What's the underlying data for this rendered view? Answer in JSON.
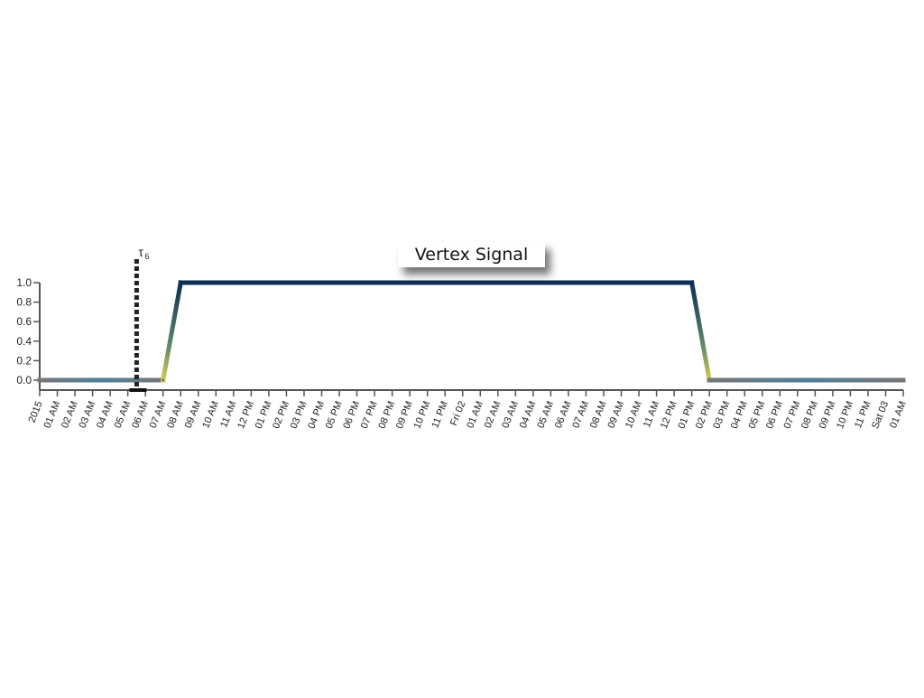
{
  "chart_data": {
    "type": "line",
    "title": "Vertex Signal",
    "xlabel": "",
    "ylabel": "",
    "x_unit": "hour",
    "x_ticks": [
      "2015",
      "01 AM",
      "02 AM",
      "03 AM",
      "04 AM",
      "05 AM",
      "06 AM",
      "07 AM",
      "08 AM",
      "09 AM",
      "10 AM",
      "11 AM",
      "12 PM",
      "01 PM",
      "02 PM",
      "03 PM",
      "04 PM",
      "05 PM",
      "06 PM",
      "07 PM",
      "08 PM",
      "09 PM",
      "10 PM",
      "11 PM",
      "Fri 02",
      "01 AM",
      "02 AM",
      "03 AM",
      "04 AM",
      "05 AM",
      "06 AM",
      "07 AM",
      "08 AM",
      "09 AM",
      "10 AM",
      "11 AM",
      "12 PM",
      "01 PM",
      "02 PM",
      "03 PM",
      "04 PM",
      "05 PM",
      "06 PM",
      "07 PM",
      "08 PM",
      "09 PM",
      "10 PM",
      "11 PM",
      "Sat 03",
      "01 AM"
    ],
    "y_ticks": [
      "0.0",
      "0.2",
      "0.4",
      "0.6",
      "0.8",
      "1.0"
    ],
    "ylim": [
      0,
      1.0
    ],
    "grid": false,
    "series": [
      {
        "x": [
          "2015-01-01 00:00",
          "2015-01-01 07:00",
          "2015-01-01 08:00",
          "2015-01-02 13:00",
          "2015-01-02 14:00",
          "2015-01-03 01:00"
        ],
        "y": [
          0.0,
          0.0,
          1.0,
          1.0,
          0.0,
          0.0
        ]
      }
    ],
    "annotations": [
      {
        "x": "2015-01-01 05:30",
        "label": "τ",
        "subscript": "6",
        "style": "dashed vertical line"
      }
    ],
    "colors": {
      "high": "#0d2e55",
      "low": "#777777",
      "transition": "#c8b94a",
      "axis": "#555555"
    }
  }
}
